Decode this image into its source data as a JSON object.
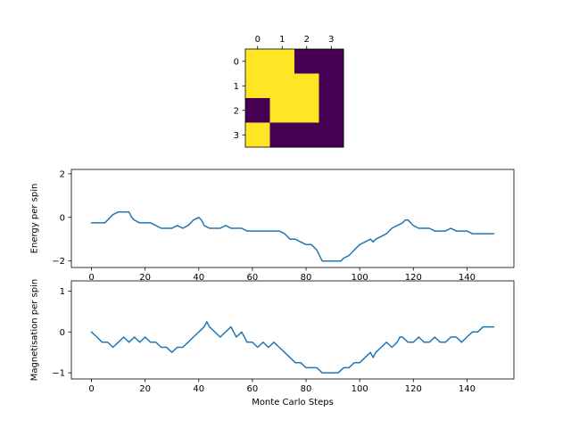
{
  "figure": {
    "background": "#ffffff",
    "axis_color": "#000000"
  },
  "chart_data": [
    {
      "type": "heatmap",
      "name": "spin-lattice",
      "grid": [
        [
          1,
          1,
          0,
          0
        ],
        [
          1,
          1,
          1,
          0
        ],
        [
          0,
          1,
          1,
          0
        ],
        [
          1,
          0,
          0,
          0
        ]
      ],
      "x_ticks": [
        "0",
        "1",
        "2",
        "3"
      ],
      "y_ticks": [
        "0",
        "1",
        "2",
        "3"
      ],
      "colormap": {
        "0": "#440154",
        "1": "#FDE725"
      },
      "legend": "none",
      "grid_lines": false
    },
    {
      "type": "line",
      "name": "energy-per-spin",
      "ylabel": "Energy per spin",
      "xlim": [
        -7.5,
        157.5
      ],
      "ylim": [
        -2.3,
        2.2
      ],
      "x_ticks": [
        0,
        20,
        40,
        60,
        80,
        100,
        120,
        140
      ],
      "y_ticks": [
        2,
        0,
        -2
      ],
      "line_color": "#1f77b4",
      "grid_lines": false,
      "x": [
        0,
        3,
        5,
        6,
        8,
        10,
        14,
        15,
        16,
        18,
        22,
        24,
        26,
        30,
        32,
        34,
        36,
        38,
        40,
        41,
        42,
        44,
        48,
        50,
        52,
        56,
        58,
        64,
        70,
        72,
        74,
        76,
        78,
        80,
        82,
        84,
        85,
        86,
        93,
        94,
        96,
        98,
        100,
        102,
        104,
        105,
        106,
        108,
        110,
        112,
        114,
        116,
        117,
        118,
        120,
        122,
        126,
        128,
        132,
        134,
        136,
        140,
        142,
        150
      ],
      "y": [
        -0.25,
        -0.25,
        -0.25,
        -0.125,
        0.125,
        0.25,
        0.25,
        0,
        -0.125,
        -0.25,
        -0.25,
        -0.375,
        -0.5,
        -0.5,
        -0.375,
        -0.5,
        -0.375,
        -0.125,
        0,
        -0.125,
        -0.375,
        -0.5,
        -0.5,
        -0.375,
        -0.5,
        -0.5,
        -0.625,
        -0.625,
        -0.625,
        -0.75,
        -1,
        -1,
        -1.125,
        -1.25,
        -1.25,
        -1.5,
        -1.75,
        -2,
        -2,
        -1.875,
        -1.75,
        -1.5,
        -1.25,
        -1.125,
        -1,
        -1.125,
        -1,
        -0.875,
        -0.75,
        -0.5,
        -0.375,
        -0.25,
        -0.125,
        -0.125,
        -0.375,
        -0.5,
        -0.5,
        -0.625,
        -0.625,
        -0.5,
        -0.625,
        -0.625,
        -0.75,
        -0.75
      ]
    },
    {
      "type": "line",
      "name": "magnetisation-per-spin",
      "ylabel": "Magnetisation per spin",
      "xlabel": "Monte Carlo Steps",
      "xlim": [
        -7.5,
        157.5
      ],
      "ylim": [
        -1.15,
        1.25
      ],
      "x_ticks": [
        0,
        20,
        40,
        60,
        80,
        100,
        120,
        140
      ],
      "y_ticks": [
        1,
        0,
        -1
      ],
      "line_color": "#1f77b4",
      "grid_lines": false,
      "x": [
        0,
        2,
        4,
        6,
        8,
        10,
        12,
        14,
        16,
        18,
        20,
        22,
        24,
        26,
        28,
        30,
        32,
        34,
        36,
        38,
        40,
        42,
        43,
        44,
        46,
        48,
        50,
        52,
        53,
        54,
        56,
        57,
        58,
        60,
        62,
        64,
        66,
        68,
        70,
        72,
        74,
        76,
        78,
        80,
        84,
        86,
        92,
        94,
        96,
        98,
        100,
        102,
        104,
        105,
        106,
        108,
        110,
        112,
        114,
        115,
        116,
        118,
        120,
        122,
        124,
        126,
        128,
        130,
        132,
        134,
        136,
        138,
        140,
        142,
        144,
        146,
        150
      ],
      "y": [
        0,
        -0.125,
        -0.25,
        -0.25,
        -0.375,
        -0.25,
        -0.125,
        -0.25,
        -0.125,
        -0.25,
        -0.125,
        -0.25,
        -0.25,
        -0.375,
        -0.375,
        -0.5,
        -0.375,
        -0.375,
        -0.25,
        -0.125,
        0,
        0.125,
        0.25,
        0.125,
        0,
        -0.125,
        0,
        0.125,
        0,
        -0.125,
        0,
        -0.125,
        -0.25,
        -0.25,
        -0.375,
        -0.25,
        -0.375,
        -0.25,
        -0.375,
        -0.5,
        -0.625,
        -0.75,
        -0.75,
        -0.875,
        -0.875,
        -1,
        -1,
        -0.875,
        -0.875,
        -0.75,
        -0.75,
        -0.625,
        -0.5,
        -0.625,
        -0.5,
        -0.375,
        -0.25,
        -0.375,
        -0.25,
        -0.125,
        -0.125,
        -0.25,
        -0.25,
        -0.125,
        -0.25,
        -0.25,
        -0.125,
        -0.25,
        -0.25,
        -0.125,
        -0.125,
        -0.25,
        -0.125,
        0,
        0,
        0.125,
        0.125
      ]
    }
  ]
}
